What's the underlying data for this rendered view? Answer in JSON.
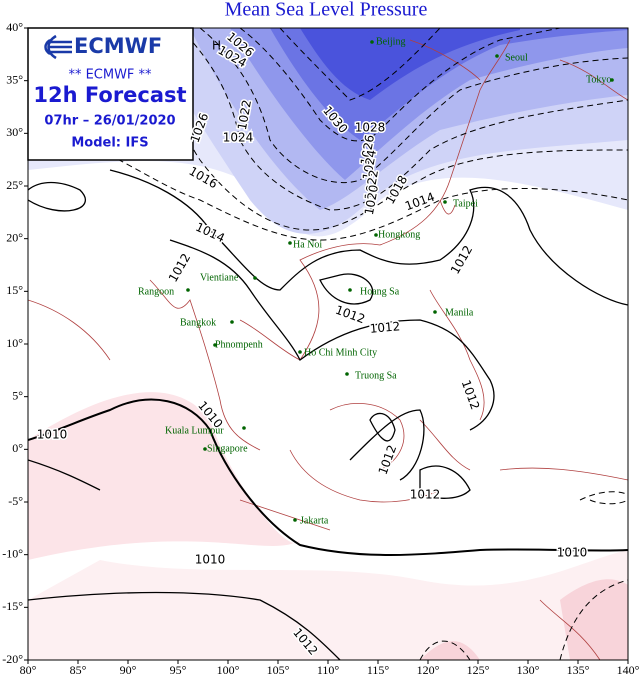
{
  "header": {
    "title": "Mean Sea Level Pressure"
  },
  "info_box": {
    "logo": "ECMWF",
    "line1": "** ECMWF **",
    "line2": "12h Forecast",
    "line3": "07hr – 26/01/2020",
    "line4": "Model: IFS"
  },
  "axes": {
    "lon_ticks": [
      {
        "value": 80,
        "label": "80°"
      },
      {
        "value": 85,
        "label": "85°"
      },
      {
        "value": 90,
        "label": "90°"
      },
      {
        "value": 95,
        "label": "95°"
      },
      {
        "value": 100,
        "label": "100°"
      },
      {
        "value": 105,
        "label": "105°"
      },
      {
        "value": 110,
        "label": "110°"
      },
      {
        "value": 115,
        "label": "115°"
      },
      {
        "value": 120,
        "label": "120°"
      },
      {
        "value": 125,
        "label": "125°"
      },
      {
        "value": 130,
        "label": "130°"
      },
      {
        "value": 135,
        "label": "135°"
      },
      {
        "value": 140,
        "label": "140°"
      }
    ],
    "lat_ticks": [
      {
        "value": 40,
        "label": "40°"
      },
      {
        "value": 35,
        "label": "35°"
      },
      {
        "value": 30,
        "label": "30°"
      },
      {
        "value": 25,
        "label": "25°"
      },
      {
        "value": 20,
        "label": "20°"
      },
      {
        "value": 15,
        "label": "15°"
      },
      {
        "value": 10,
        "label": "10°"
      },
      {
        "value": 5,
        "label": "5°"
      },
      {
        "value": 0,
        "label": "0°"
      },
      {
        "value": -5,
        "label": "-5°"
      },
      {
        "value": -10,
        "label": "-10°"
      },
      {
        "value": -15,
        "label": "-15°"
      },
      {
        "value": -20,
        "label": "-20°"
      }
    ]
  },
  "cities": [
    "Beijing",
    "Seoul",
    "Tokyo",
    "Taipei",
    "Hongkong",
    "Ha Noi",
    "Vientiane",
    "Rangoon",
    "Bangkok",
    "Phnompenh",
    "Ho Chi Minh City",
    "Hoang Sa",
    "Truong Sa",
    "Manila",
    "Kuala Lumpur",
    "Singapore",
    "Jakarta"
  ],
  "pressure_labels": [
    1026,
    1024,
    1022,
    1024,
    1026,
    1030,
    1028,
    1026,
    1024,
    1022,
    1020,
    1018,
    1016,
    1014,
    1014,
    1012,
    1012,
    1012,
    1012,
    1010,
    1010,
    1012,
    1012,
    1012,
    1010,
    1010,
    1012
  ],
  "markers": [
    "H"
  ]
}
